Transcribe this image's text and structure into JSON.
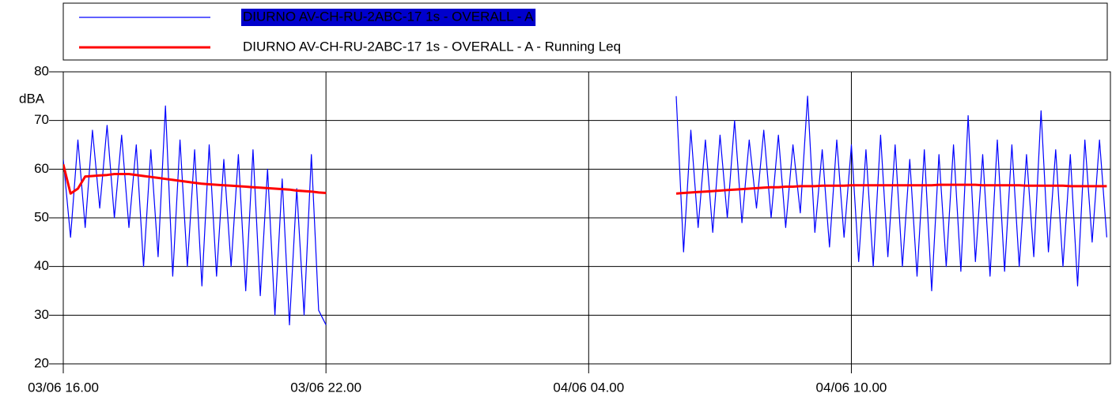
{
  "chart_data": {
    "type": "line",
    "y_label": "dBA",
    "x": [
      "03/06 16.00",
      "03/06 16.10",
      "03/06 16.20",
      "03/06 16.30",
      "03/06 16.40",
      "03/06 16.50",
      "03/06 17.00",
      "03/06 17.10",
      "03/06 17.20",
      "03/06 17.30",
      "03/06 17.40",
      "03/06 17.50",
      "03/06 18.00",
      "03/06 18.10",
      "03/06 18.20",
      "03/06 18.30",
      "03/06 18.40",
      "03/06 18.50",
      "03/06 19.00",
      "03/06 19.10",
      "03/06 19.20",
      "03/06 19.30",
      "03/06 19.40",
      "03/06 19.50",
      "03/06 20.00",
      "03/06 20.10",
      "03/06 20.20",
      "03/06 20.30",
      "03/06 20.40",
      "03/06 20.50",
      "03/06 21.00",
      "03/06 21.10",
      "03/06 21.20",
      "03/06 21.30",
      "03/06 21.40",
      "03/06 21.50",
      "03/06 22.00",
      "04/06 00.00",
      "04/06 06.00",
      "04/06 06.10",
      "04/06 06.20",
      "04/06 06.30",
      "04/06 06.40",
      "04/06 06.50",
      "04/06 07.00",
      "04/06 07.10",
      "04/06 07.20",
      "04/06 07.30",
      "04/06 07.40",
      "04/06 07.50",
      "04/06 08.00",
      "04/06 08.10",
      "04/06 08.20",
      "04/06 08.30",
      "04/06 08.40",
      "04/06 08.50",
      "04/06 09.00",
      "04/06 09.10",
      "04/06 09.20",
      "04/06 09.30",
      "04/06 09.40",
      "04/06 09.50",
      "04/06 10.00",
      "04/06 10.10",
      "04/06 10.20",
      "04/06 10.30",
      "04/06 10.40",
      "04/06 10.50",
      "04/06 11.00",
      "04/06 11.10",
      "04/06 11.20",
      "04/06 11.30",
      "04/06 11.40",
      "04/06 11.50",
      "04/06 12.00",
      "04/06 12.10",
      "04/06 12.20",
      "04/06 12.30",
      "04/06 12.40",
      "04/06 12.50",
      "04/06 13.00",
      "04/06 13.10",
      "04/06 13.20",
      "04/06 13.30",
      "04/06 13.40",
      "04/06 13.50",
      "04/06 14.00",
      "04/06 14.10",
      "04/06 14.20",
      "04/06 14.30",
      "04/06 14.40",
      "04/06 14.50",
      "04/06 15.00",
      "04/06 15.10",
      "04/06 15.20",
      "04/06 15.30",
      "04/06 15.40",
      "04/06 15.50"
    ],
    "series": [
      {
        "name": "DIURNO AV-CH-RU-2ABC-17 1s - OVERALL - A",
        "color": "#0000ff",
        "width": 1.2,
        "values": [
          62,
          46,
          66,
          48,
          68,
          52,
          69,
          50,
          67,
          48,
          65,
          40,
          64,
          42,
          73,
          38,
          66,
          40,
          64,
          36,
          65,
          38,
          62,
          40,
          63,
          35,
          64,
          34,
          60,
          30,
          58,
          28,
          56,
          30,
          63,
          31,
          28,
          null,
          75,
          43,
          68,
          48,
          66,
          47,
          67,
          50,
          70,
          49,
          66,
          52,
          68,
          50,
          67,
          48,
          65,
          51,
          75,
          47,
          64,
          44,
          66,
          46,
          65,
          41,
          64,
          40,
          67,
          42,
          65,
          40,
          62,
          38,
          64,
          35,
          63,
          40,
          65,
          39,
          71,
          41,
          63,
          38,
          66,
          39,
          65,
          40,
          63,
          42,
          72,
          43,
          64,
          40,
          63,
          36,
          66,
          45,
          66,
          46
        ]
      },
      {
        "name": "DIURNO AV-CH-RU-2ABC-17 1s - OVERALL - A - Running Leq",
        "color": "#ff0000",
        "width": 3,
        "values": [
          61,
          55,
          56,
          58.5,
          58.6,
          58.7,
          58.8,
          59,
          59,
          59,
          58.8,
          58.6,
          58.4,
          58.2,
          58,
          57.8,
          57.6,
          57.4,
          57.2,
          57,
          56.9,
          56.8,
          56.7,
          56.6,
          56.5,
          56.4,
          56.3,
          56.2,
          56.1,
          56,
          55.9,
          55.8,
          55.6,
          55.5,
          55.4,
          55.2,
          55.1,
          null,
          55,
          55.1,
          55.2,
          55.3,
          55.4,
          55.5,
          55.6,
          55.7,
          55.8,
          55.9,
          56,
          56.1,
          56.2,
          56.3,
          56.3,
          56.4,
          56.4,
          56.5,
          56.5,
          56.5,
          56.6,
          56.6,
          56.6,
          56.6,
          56.7,
          56.7,
          56.7,
          56.7,
          56.7,
          56.7,
          56.7,
          56.7,
          56.7,
          56.7,
          56.7,
          56.7,
          56.8,
          56.8,
          56.8,
          56.8,
          56.8,
          56.8,
          56.7,
          56.7,
          56.7,
          56.7,
          56.7,
          56.7,
          56.6,
          56.6,
          56.6,
          56.6,
          56.6,
          56.6,
          56.5,
          56.5,
          56.5,
          56.5,
          56.5,
          56.5
        ]
      }
    ],
    "xlim": [
      "03/06 16.00",
      "04/06 15.55"
    ],
    "xticks": [
      "03/06 16.00",
      "03/06 22.00",
      "04/06 04.00",
      "04/06 10.00"
    ],
    "ylim": [
      20,
      80
    ],
    "yticks": [
      20,
      30,
      40,
      50,
      60,
      70,
      80
    ],
    "grid": true
  }
}
